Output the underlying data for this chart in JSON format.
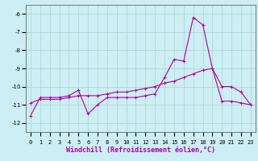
{
  "xlabel": "Windchill (Refroidissement éolien,°C)",
  "background_color": "#cdeef5",
  "grid_color": "#b0d8d0",
  "line_color": "#aa00aa",
  "x_hours": [
    0,
    1,
    2,
    3,
    4,
    5,
    6,
    7,
    8,
    9,
    10,
    11,
    12,
    13,
    14,
    15,
    16,
    17,
    18,
    19,
    20,
    21,
    22,
    23
  ],
  "windchill_values": [
    -11.6,
    -10.6,
    -10.6,
    -10.6,
    -10.5,
    -10.2,
    -11.5,
    -11.0,
    -10.6,
    -10.6,
    -10.6,
    -10.6,
    -10.5,
    -10.4,
    -9.5,
    -8.5,
    -8.6,
    -6.2,
    -6.6,
    -9.0,
    -10.0,
    -10.0,
    -10.3,
    -11.0
  ],
  "temp_values": [
    -10.9,
    -10.7,
    -10.7,
    -10.7,
    -10.6,
    -10.5,
    -10.5,
    -10.5,
    -10.4,
    -10.3,
    -10.3,
    -10.2,
    -10.1,
    -10.0,
    -9.8,
    -9.7,
    -9.5,
    -9.3,
    -9.1,
    -9.0,
    -10.8,
    -10.8,
    -10.9,
    -11.0
  ],
  "ylim": [
    -12.5,
    -5.5
  ],
  "yticks": [
    -6,
    -7,
    -8,
    -9,
    -10,
    -11,
    -12
  ],
  "xtick_labels": [
    "0",
    "1",
    "2",
    "3",
    "4",
    "5",
    "6",
    "7",
    "8",
    "9",
    "10",
    "11",
    "12",
    "13",
    "14",
    "15",
    "16",
    "17",
    "18",
    "19",
    "20",
    "21",
    "22",
    "23"
  ],
  "label_fontsize": 6.0,
  "tick_fontsize": 5.0,
  "marker_size": 3.0,
  "line_width": 0.8
}
